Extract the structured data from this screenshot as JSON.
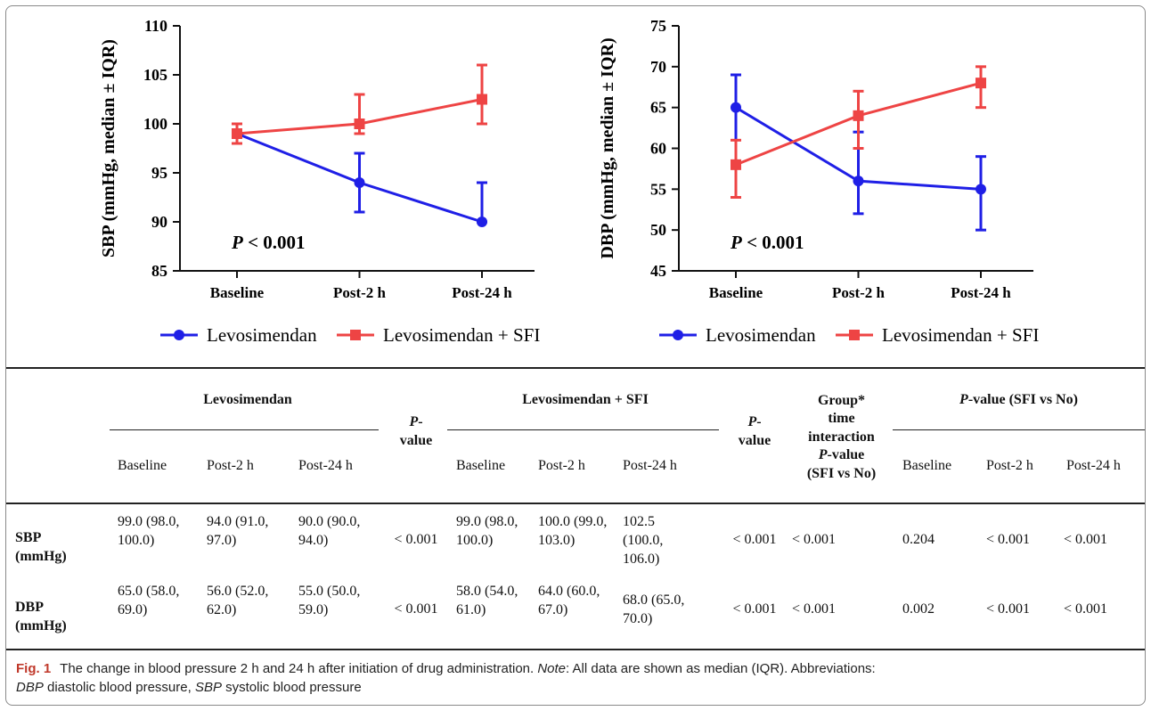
{
  "chart_data": [
    {
      "type": "line",
      "ylabel": "SBP (mmHg, median ± IQR)",
      "categories": [
        "Baseline",
        "Post-2 h",
        "Post-24 h"
      ],
      "ylim": [
        85,
        110
      ],
      "yticks": [
        85,
        90,
        95,
        100,
        105,
        110
      ],
      "annotation": {
        "italic": "P",
        "rest": " < 0.001"
      },
      "series": [
        {
          "name": "Levosimendan",
          "color": "#1f1fe6",
          "marker": "circle",
          "values": [
            99,
            94,
            90
          ],
          "lower": [
            98,
            91,
            90
          ],
          "upper": [
            100,
            97,
            94
          ]
        },
        {
          "name": "Levosimendan + SFI",
          "color": "#ee4444",
          "marker": "square",
          "values": [
            99,
            100,
            102.5
          ],
          "lower": [
            98,
            99,
            100
          ],
          "upper": [
            100,
            103,
            106
          ]
        }
      ]
    },
    {
      "type": "line",
      "ylabel": "DBP (mmHg, median ± IQR)",
      "categories": [
        "Baseline",
        "Post-2 h",
        "Post-24 h"
      ],
      "ylim": [
        45,
        75
      ],
      "yticks": [
        45,
        50,
        55,
        60,
        65,
        70,
        75
      ],
      "annotation": {
        "italic": "P",
        "rest": " < 0.001"
      },
      "series": [
        {
          "name": "Levosimendan",
          "color": "#1f1fe6",
          "marker": "circle",
          "values": [
            65,
            56,
            55
          ],
          "lower": [
            58,
            52,
            50
          ],
          "upper": [
            69,
            62,
            59
          ]
        },
        {
          "name": "Levosimendan + SFI",
          "color": "#ee4444",
          "marker": "square",
          "values": [
            58,
            64,
            68
          ],
          "lower": [
            54,
            60,
            65
          ],
          "upper": [
            61,
            67,
            70
          ]
        }
      ]
    }
  ],
  "table": {
    "group1": "Levosimendan",
    "group2": "Levosimendan + SFI",
    "pvalue_italic": "P",
    "pvalue_rest": "-value",
    "interaction_line1": "Group*",
    "interaction_line2": "time",
    "interaction_line3": "interaction",
    "interaction_line4_rest": "-value",
    "interaction_line5": "(SFI vs No)",
    "sfi_vs_no_rest": "-value (SFI vs No)",
    "subheaders": [
      "Baseline",
      "Post-2 h",
      "Post-24 h"
    ],
    "rows": [
      {
        "label_l1": "SBP",
        "label_l2": "(mmHg)",
        "lev": [
          "99.0 (98.0, 100.0)",
          "94.0 (91.0, 97.0)",
          "90.0 (90.0, 94.0)"
        ],
        "lev_p": "< 0.001",
        "sfi": [
          "99.0 (98.0, 100.0)",
          "100.0 (99.0, 103.0)",
          "102.5 (100.0, 106.0)"
        ],
        "sfi_p": "< 0.001",
        "interaction": "< 0.001",
        "cmp": [
          "0.204",
          "< 0.001",
          "< 0.001"
        ]
      },
      {
        "label_l1": "DBP",
        "label_l2": "(mmHg)",
        "lev": [
          "65.0 (58.0, 69.0)",
          "56.0 (52.0, 62.0)",
          "55.0 (50.0, 59.0)"
        ],
        "lev_p": "< 0.001",
        "sfi": [
          "58.0 (54.0, 61.0)",
          "64.0 (60.0, 67.0)",
          "68.0 (65.0, 70.0)"
        ],
        "sfi_p": "< 0.001",
        "interaction": "< 0.001",
        "cmp": [
          "0.002",
          "< 0.001",
          "< 0.001"
        ]
      }
    ]
  },
  "caption": {
    "fig": "Fig. 1",
    "text": "The change in blood pressure 2 h and 24 h after initiation of drug administration. ",
    "note_label": "Note",
    "note_text": ": All data are shown as median (IQR). Abbreviations:",
    "abbr1": "DBP",
    "abbr1_text": " diastolic blood pressure, ",
    "abbr2": "SBP",
    "abbr2_text": " systolic blood pressure"
  }
}
